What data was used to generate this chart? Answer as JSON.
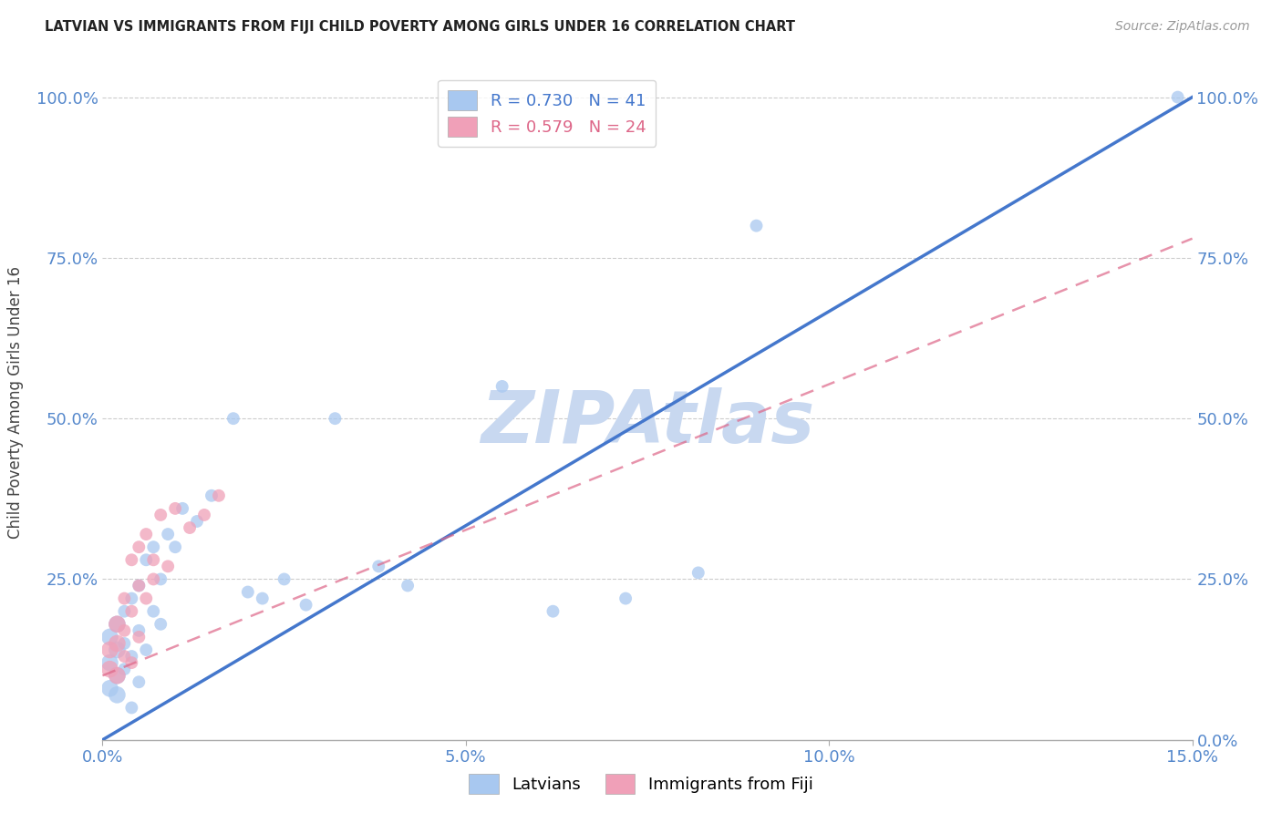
{
  "title": "LATVIAN VS IMMIGRANTS FROM FIJI CHILD POVERTY AMONG GIRLS UNDER 16 CORRELATION CHART",
  "source": "Source: ZipAtlas.com",
  "ylabel": "Child Poverty Among Girls Under 16",
  "xlim": [
    0.0,
    0.15
  ],
  "ylim": [
    0.0,
    1.05
  ],
  "xticks": [
    0.0,
    0.05,
    0.1,
    0.15
  ],
  "xticklabels": [
    "0.0%",
    "5.0%",
    "10.0%",
    "15.0%"
  ],
  "yticks_right": [
    0.0,
    0.25,
    0.5,
    0.75,
    1.0
  ],
  "yticklabels_right": [
    "0.0%",
    "25.0%",
    "50.0%",
    "75.0%",
    "100.0%"
  ],
  "yticks_left": [
    0.25,
    0.5,
    0.75,
    1.0
  ],
  "yticklabels_left": [
    "25.0%",
    "50.0%",
    "75.0%",
    "100.0%"
  ],
  "legend1_label": "R = 0.730   N = 41",
  "legend2_label": "R = 0.579   N = 24",
  "latvian_color": "#A8C8F0",
  "fiji_color": "#F0A0B8",
  "latvian_line_color": "#4477CC",
  "fiji_line_color": "#DD6688",
  "tick_color": "#5588CC",
  "watermark": "ZIPAtlas",
  "watermark_color": "#C8D8F0",
  "background_color": "#FFFFFF",
  "grid_color": "#CCCCCC",
  "latvian_R": 0.73,
  "fiji_R": 0.579,
  "latvian_line_slope": 6.8,
  "latvian_line_intercept": -0.02,
  "fiji_line_slope": 4.5,
  "fiji_line_intercept": 0.1,
  "latvians_x": [
    0.001,
    0.001,
    0.001,
    0.002,
    0.002,
    0.002,
    0.002,
    0.003,
    0.003,
    0.003,
    0.004,
    0.004,
    0.004,
    0.005,
    0.005,
    0.005,
    0.006,
    0.006,
    0.007,
    0.007,
    0.008,
    0.008,
    0.009,
    0.01,
    0.011,
    0.013,
    0.015,
    0.018,
    0.02,
    0.022,
    0.025,
    0.028,
    0.032,
    0.038,
    0.042,
    0.055,
    0.062,
    0.072,
    0.082,
    0.09,
    0.148
  ],
  "latvians_y": [
    0.08,
    0.12,
    0.16,
    0.07,
    0.1,
    0.14,
    0.18,
    0.11,
    0.15,
    0.2,
    0.05,
    0.13,
    0.22,
    0.09,
    0.17,
    0.24,
    0.14,
    0.28,
    0.2,
    0.3,
    0.18,
    0.25,
    0.32,
    0.3,
    0.36,
    0.34,
    0.38,
    0.5,
    0.23,
    0.22,
    0.25,
    0.21,
    0.5,
    0.27,
    0.24,
    0.55,
    0.2,
    0.22,
    0.26,
    0.8,
    1.0
  ],
  "fiji_x": [
    0.001,
    0.001,
    0.002,
    0.002,
    0.002,
    0.003,
    0.003,
    0.003,
    0.004,
    0.004,
    0.004,
    0.005,
    0.005,
    0.005,
    0.006,
    0.006,
    0.007,
    0.007,
    0.008,
    0.009,
    0.01,
    0.012,
    0.014,
    0.016
  ],
  "fiji_y": [
    0.11,
    0.14,
    0.1,
    0.15,
    0.18,
    0.13,
    0.17,
    0.22,
    0.12,
    0.2,
    0.28,
    0.16,
    0.24,
    0.3,
    0.22,
    0.32,
    0.25,
    0.28,
    0.35,
    0.27,
    0.36,
    0.33,
    0.35,
    0.38
  ]
}
